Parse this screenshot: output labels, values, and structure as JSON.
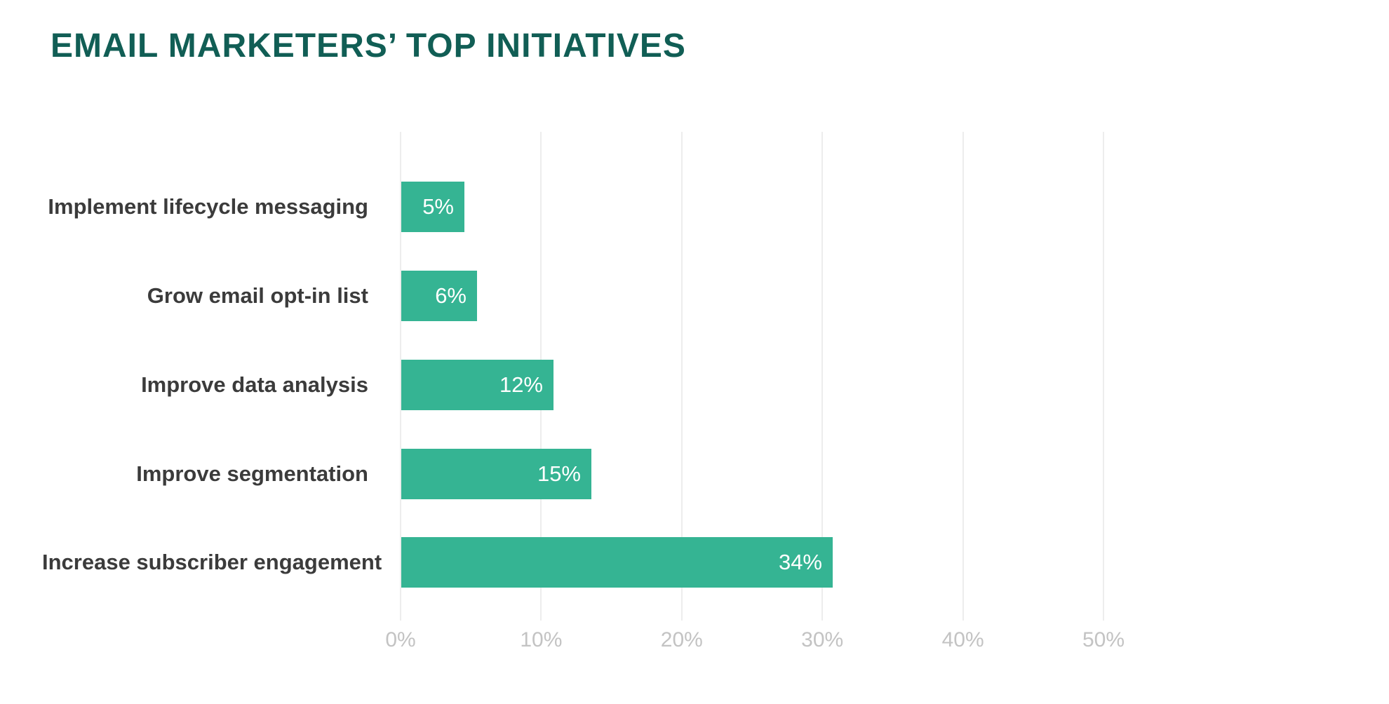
{
  "title": "EMAIL MARKETERS’ TOP INITIATIVES",
  "colors": {
    "title": "#115e55",
    "bar": "#35b493",
    "bar_value_text": "#ffffff",
    "category_label": "#3b3b3b",
    "tick_label": "#c3c3c3",
    "gridline": "#ededed",
    "background": "#ffffff"
  },
  "chart_data": {
    "type": "bar",
    "orientation": "horizontal",
    "title": "EMAIL MARKETERS’ TOP INITIATIVES",
    "categories": [
      "Implement lifecycle messaging",
      "Grow email opt-in list",
      "Improve data analysis",
      "Improve segmentation",
      "Increase subscriber engagement"
    ],
    "values": [
      5,
      6,
      12,
      15,
      34
    ],
    "value_labels": [
      "5%",
      "6%",
      "12%",
      "15%",
      "34%"
    ],
    "x_ticks": [
      "0%",
      "10%",
      "20%",
      "30%",
      "40%",
      "50%"
    ],
    "x_tick_values": [
      0,
      10,
      20,
      30,
      40,
      50
    ],
    "xlim": [
      0,
      50
    ],
    "xlabel": "",
    "ylabel": "",
    "grid": "vertical-only",
    "legend": "none",
    "value_label_position": "inside-right",
    "category_label_position": "left-of-bar"
  }
}
